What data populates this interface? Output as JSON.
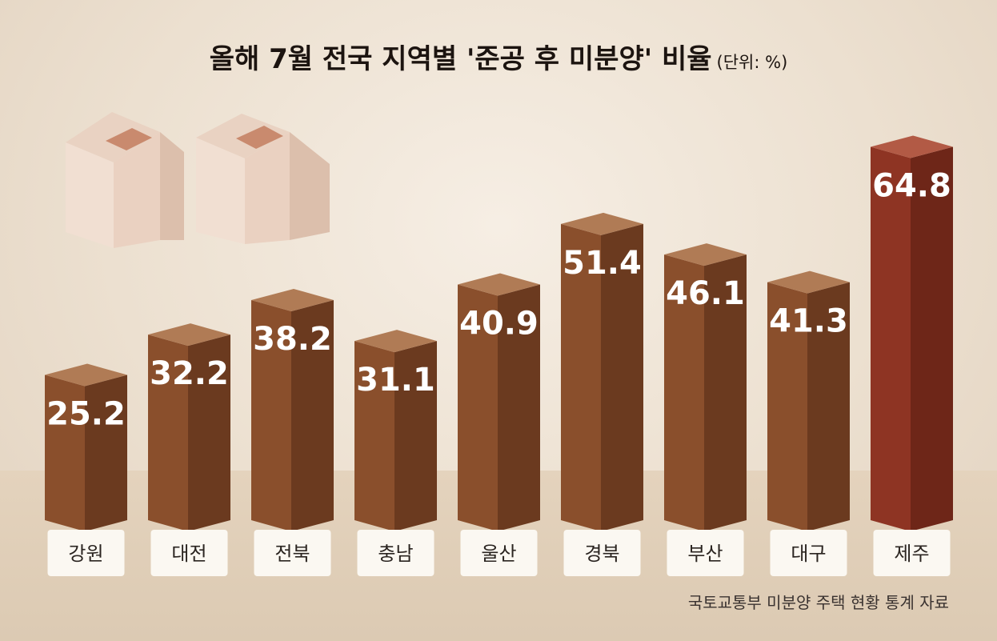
{
  "chart_data": {
    "type": "bar",
    "title": "올해 7월 전국 지역별 '준공 후 미분양' 비율",
    "unit_label": "(단위:  %)",
    "categories": [
      "강원",
      "대전",
      "전북",
      "충남",
      "울산",
      "경북",
      "부산",
      "대구",
      "제주"
    ],
    "values": [
      25.2,
      32.2,
      38.2,
      31.1,
      40.9,
      51.4,
      46.1,
      41.3,
      64.8
    ],
    "value_labels": [
      "25.2",
      "32.2",
      "38.2",
      "31.1",
      "40.9",
      "51.4",
      "46.1",
      "41.3",
      "64.8"
    ],
    "highlight_category": "제주",
    "source": "국토교통부 미분양 주택 현황 통계 자료",
    "ylim": [
      0,
      70
    ],
    "grid": false,
    "colors": {
      "bar_front": "#8a4f2c",
      "bar_side": "#6b3a1f",
      "bar_top": "#b07b55",
      "highlight_front": "#8e3423",
      "highlight_side": "#6e2618",
      "highlight_top": "#b25a45",
      "label_box": "#fbf8f2"
    }
  }
}
